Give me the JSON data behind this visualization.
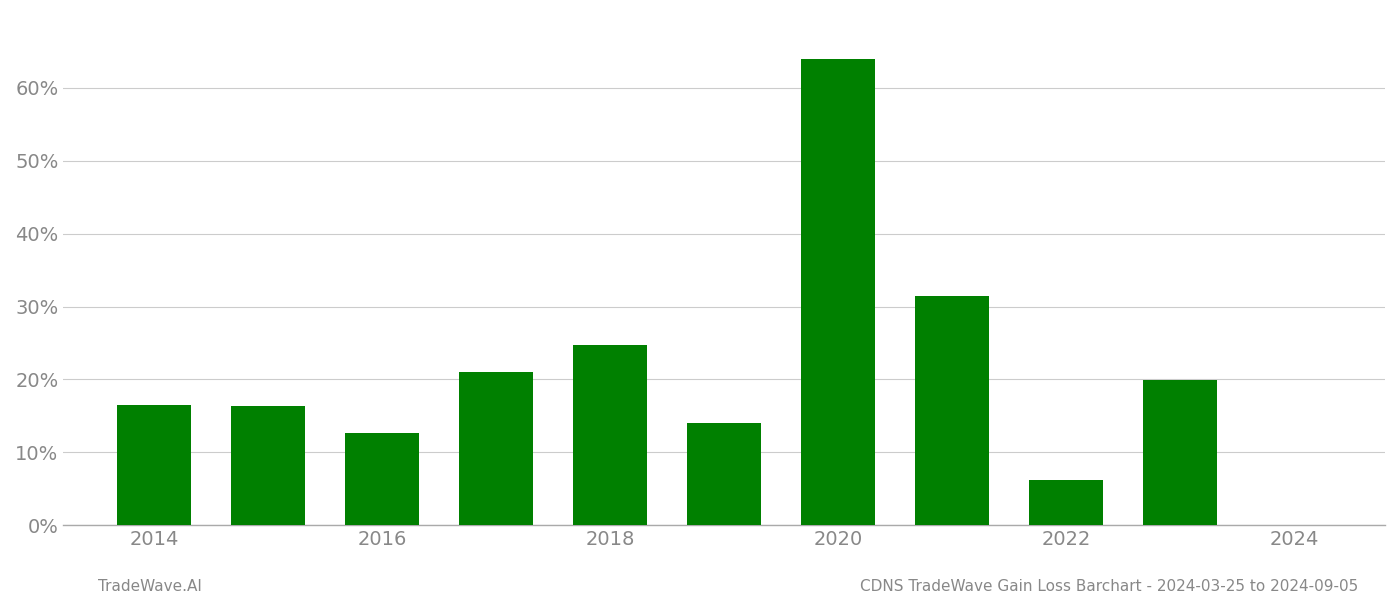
{
  "years": [
    2014,
    2015,
    2016,
    2017,
    2018,
    2019,
    2020,
    2021,
    2022,
    2023,
    2024
  ],
  "values": [
    0.165,
    0.163,
    0.126,
    0.21,
    0.247,
    0.14,
    0.64,
    0.315,
    0.062,
    0.199,
    0.0
  ],
  "bar_color": "#008000",
  "background_color": "#ffffff",
  "grid_color": "#cccccc",
  "axis_color": "#aaaaaa",
  "tick_color": "#888888",
  "ylim": [
    0,
    0.7
  ],
  "yticks": [
    0.0,
    0.1,
    0.2,
    0.3,
    0.4,
    0.5,
    0.6
  ],
  "xtick_labels": [
    "2014",
    "2016",
    "2018",
    "2020",
    "2022",
    "2024"
  ],
  "footer_left": "TradeWave.AI",
  "footer_right": "CDNS TradeWave Gain Loss Barchart - 2024-03-25 to 2024-09-05",
  "footer_color": "#888888",
  "footer_fontsize": 11,
  "bar_width": 0.65
}
